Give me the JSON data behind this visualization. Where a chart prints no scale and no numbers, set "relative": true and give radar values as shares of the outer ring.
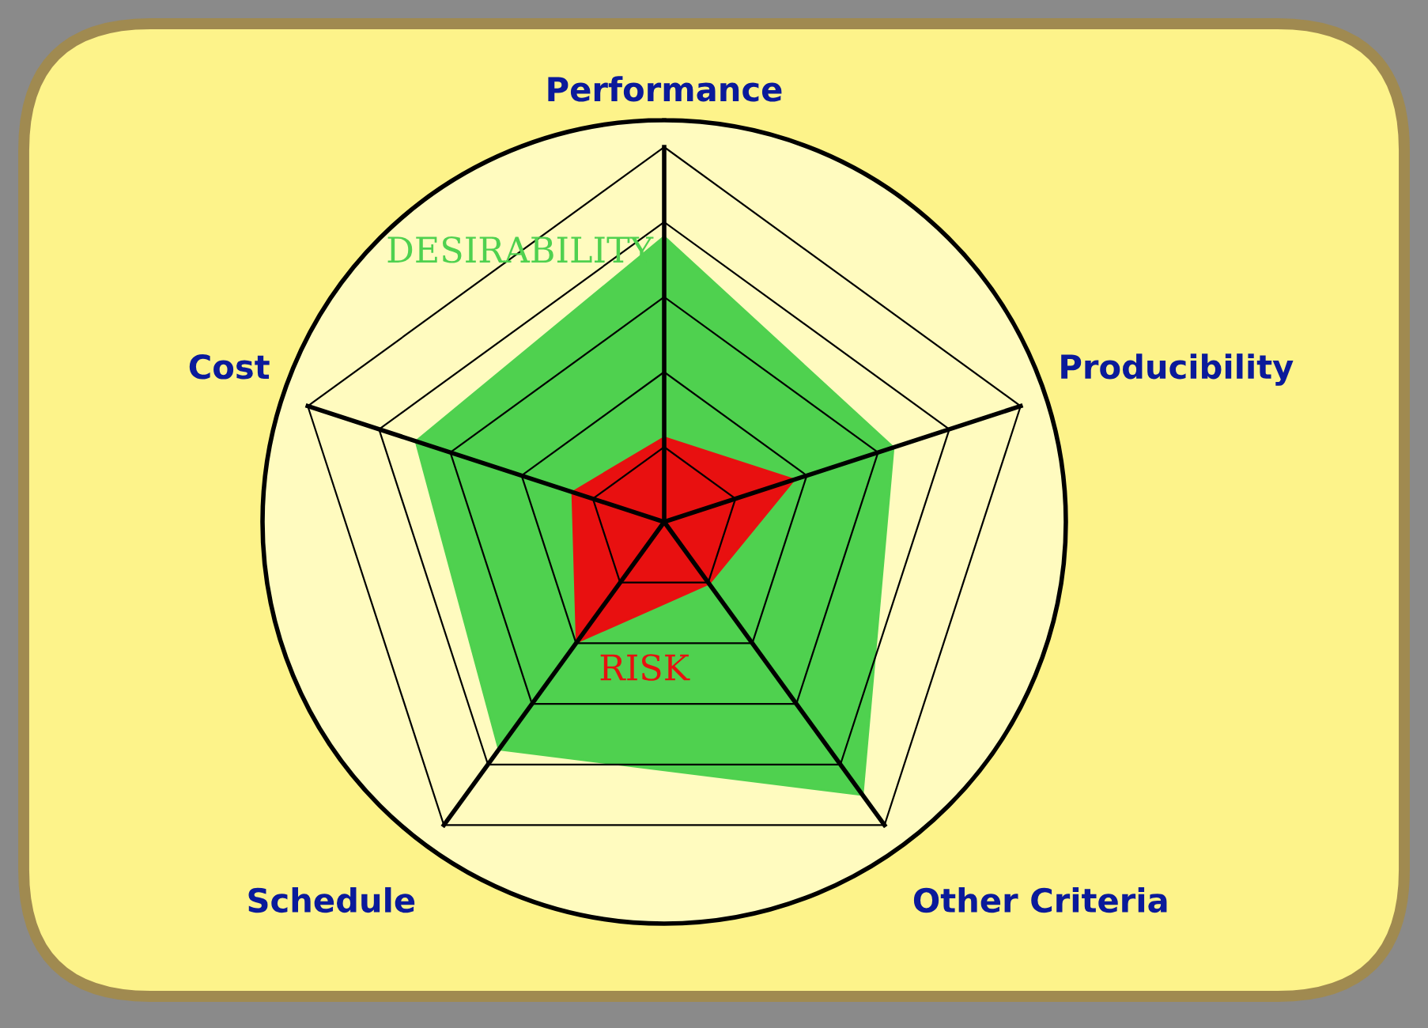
{
  "chart_data": {
    "type": "radar",
    "relative": true,
    "grid": true,
    "categories": [
      "Performance",
      "Producibility",
      "Other Criteria",
      "Schedule",
      "Cost"
    ],
    "series": [
      {
        "name": "DESIRABILITY",
        "color": "#4fd14f",
        "values": [
          0.71,
          0.6,
          0.84,
          0.7,
          0.65
        ]
      },
      {
        "name": "RISK",
        "color": "#e81010",
        "values": [
          0.21,
          0.34,
          0.19,
          0.37,
          0.24
        ]
      }
    ]
  }
}
